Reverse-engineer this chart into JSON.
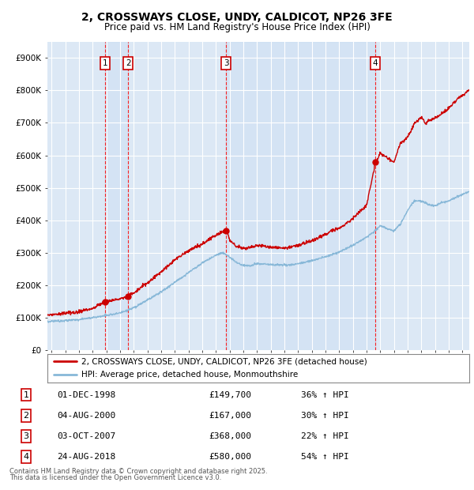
{
  "title": "2, CROSSWAYS CLOSE, UNDY, CALDICOT, NP26 3FE",
  "subtitle": "Price paid vs. HM Land Registry's House Price Index (HPI)",
  "ylim": [
    0,
    950000
  ],
  "yticks": [
    0,
    100000,
    200000,
    300000,
    400000,
    500000,
    600000,
    700000,
    800000,
    900000
  ],
  "ytick_labels": [
    "£0",
    "£100K",
    "£200K",
    "£300K",
    "£400K",
    "£500K",
    "£600K",
    "£700K",
    "£800K",
    "£900K"
  ],
  "xlim_start": 1994.7,
  "xlim_end": 2025.5,
  "background_color": "#ffffff",
  "plot_bg_color": "#dce8f5",
  "grid_color": "#ffffff",
  "sale_color": "#cc0000",
  "hpi_color": "#88b8d8",
  "transactions": [
    {
      "id": 1,
      "date_label": "01-DEC-1998",
      "year": 1998.92,
      "price": 149700,
      "pct": "36%",
      "direction": "↑"
    },
    {
      "id": 2,
      "date_label": "04-AUG-2000",
      "year": 2000.59,
      "price": 167000,
      "pct": "30%",
      "direction": "↑"
    },
    {
      "id": 3,
      "date_label": "03-OCT-2007",
      "year": 2007.75,
      "price": 368000,
      "pct": "22%",
      "direction": "↑"
    },
    {
      "id": 4,
      "date_label": "24-AUG-2018",
      "year": 2018.65,
      "price": 580000,
      "pct": "54%",
      "direction": "↑"
    }
  ],
  "legend_line1": "2, CROSSWAYS CLOSE, UNDY, CALDICOT, NP26 3FE (detached house)",
  "legend_line2": "HPI: Average price, detached house, Monmouthshire",
  "footer1": "Contains HM Land Registry data © Crown copyright and database right 2025.",
  "footer2": "This data is licensed under the Open Government Licence v3.0.",
  "hpi_key_years": [
    1994.7,
    1995,
    1996,
    1997,
    1998,
    1999,
    2000,
    2001,
    2002,
    2003,
    2004,
    2005,
    2006,
    2007,
    2007.5,
    2008,
    2008.5,
    2009,
    2009.5,
    2010,
    2011,
    2012,
    2013,
    2014,
    2015,
    2016,
    2017,
    2018,
    2018.5,
    2019,
    2019.5,
    2020,
    2020.5,
    2021,
    2021.5,
    2022,
    2022.5,
    2023,
    2023.5,
    2024,
    2024.5,
    2025,
    2025.5
  ],
  "hpi_key_vals": [
    88000,
    90000,
    92000,
    95000,
    100000,
    108000,
    115000,
    130000,
    155000,
    180000,
    210000,
    240000,
    270000,
    295000,
    302000,
    290000,
    272000,
    265000,
    262000,
    268000,
    265000,
    263000,
    268000,
    278000,
    290000,
    305000,
    325000,
    350000,
    365000,
    385000,
    375000,
    368000,
    390000,
    430000,
    460000,
    460000,
    450000,
    445000,
    455000,
    460000,
    470000,
    480000,
    490000
  ],
  "sale_key_years": [
    1994.7,
    1995,
    1996,
    1997,
    1998,
    1998.9,
    1998.92,
    1999,
    2000,
    2000.58,
    2000.59,
    2001,
    2002,
    2003,
    2004,
    2005,
    2006,
    2007,
    2007.74,
    2007.75,
    2007.9,
    2008,
    2008.5,
    2009,
    2009.5,
    2010,
    2011,
    2012,
    2013,
    2014,
    2015,
    2016,
    2017,
    2018,
    2018.64,
    2018.65,
    2018.8,
    2019,
    2019.5,
    2020,
    2020.3,
    2020.5,
    2021,
    2021.5,
    2022,
    2022.3,
    2022.5,
    2023,
    2023.5,
    2024,
    2024.3,
    2024.5,
    2025,
    2025.5
  ],
  "sale_key_vals": [
    108000,
    110000,
    113000,
    118000,
    128000,
    148000,
    149700,
    152000,
    158000,
    166500,
    167000,
    175000,
    205000,
    240000,
    278000,
    305000,
    325000,
    355000,
    367000,
    368000,
    355000,
    340000,
    320000,
    315000,
    318000,
    325000,
    320000,
    315000,
    325000,
    340000,
    360000,
    380000,
    410000,
    450000,
    578000,
    580000,
    590000,
    610000,
    595000,
    580000,
    620000,
    640000,
    660000,
    700000,
    720000,
    700000,
    710000,
    715000,
    730000,
    745000,
    760000,
    770000,
    785000,
    800000
  ]
}
